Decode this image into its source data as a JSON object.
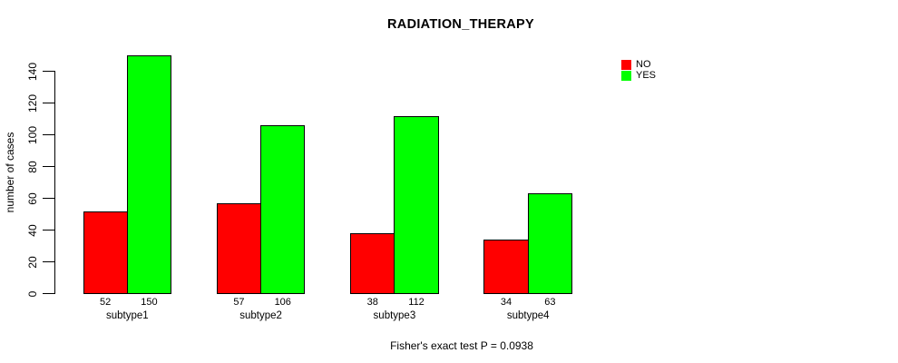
{
  "title": "RADIATION_THERAPY",
  "footer": "Fisher's exact test P = 0.0938",
  "legend": {
    "items": [
      {
        "label": "NO",
        "color": "#FF0000"
      },
      {
        "label": "YES",
        "color": "#00FF00"
      }
    ]
  },
  "chart_data": {
    "type": "bar",
    "title": "RADIATION_THERAPY",
    "xlabel": "",
    "ylabel": "number of cases",
    "categories": [
      "subtype1",
      "subtype2",
      "subtype3",
      "subtype4"
    ],
    "series": [
      {
        "name": "NO",
        "color": "#FF0000",
        "values": [
          52,
          57,
          38,
          34
        ]
      },
      {
        "name": "YES",
        "color": "#00FF00",
        "values": [
          150,
          106,
          112,
          63
        ]
      }
    ],
    "bar_value_labels_shown": true,
    "yticks": [
      0,
      20,
      40,
      60,
      80,
      100,
      120,
      140
    ],
    "ylim": [
      0,
      150
    ],
    "grid": false,
    "legend_position": "top-right",
    "annotation": "Fisher's exact test P = 0.0938"
  }
}
